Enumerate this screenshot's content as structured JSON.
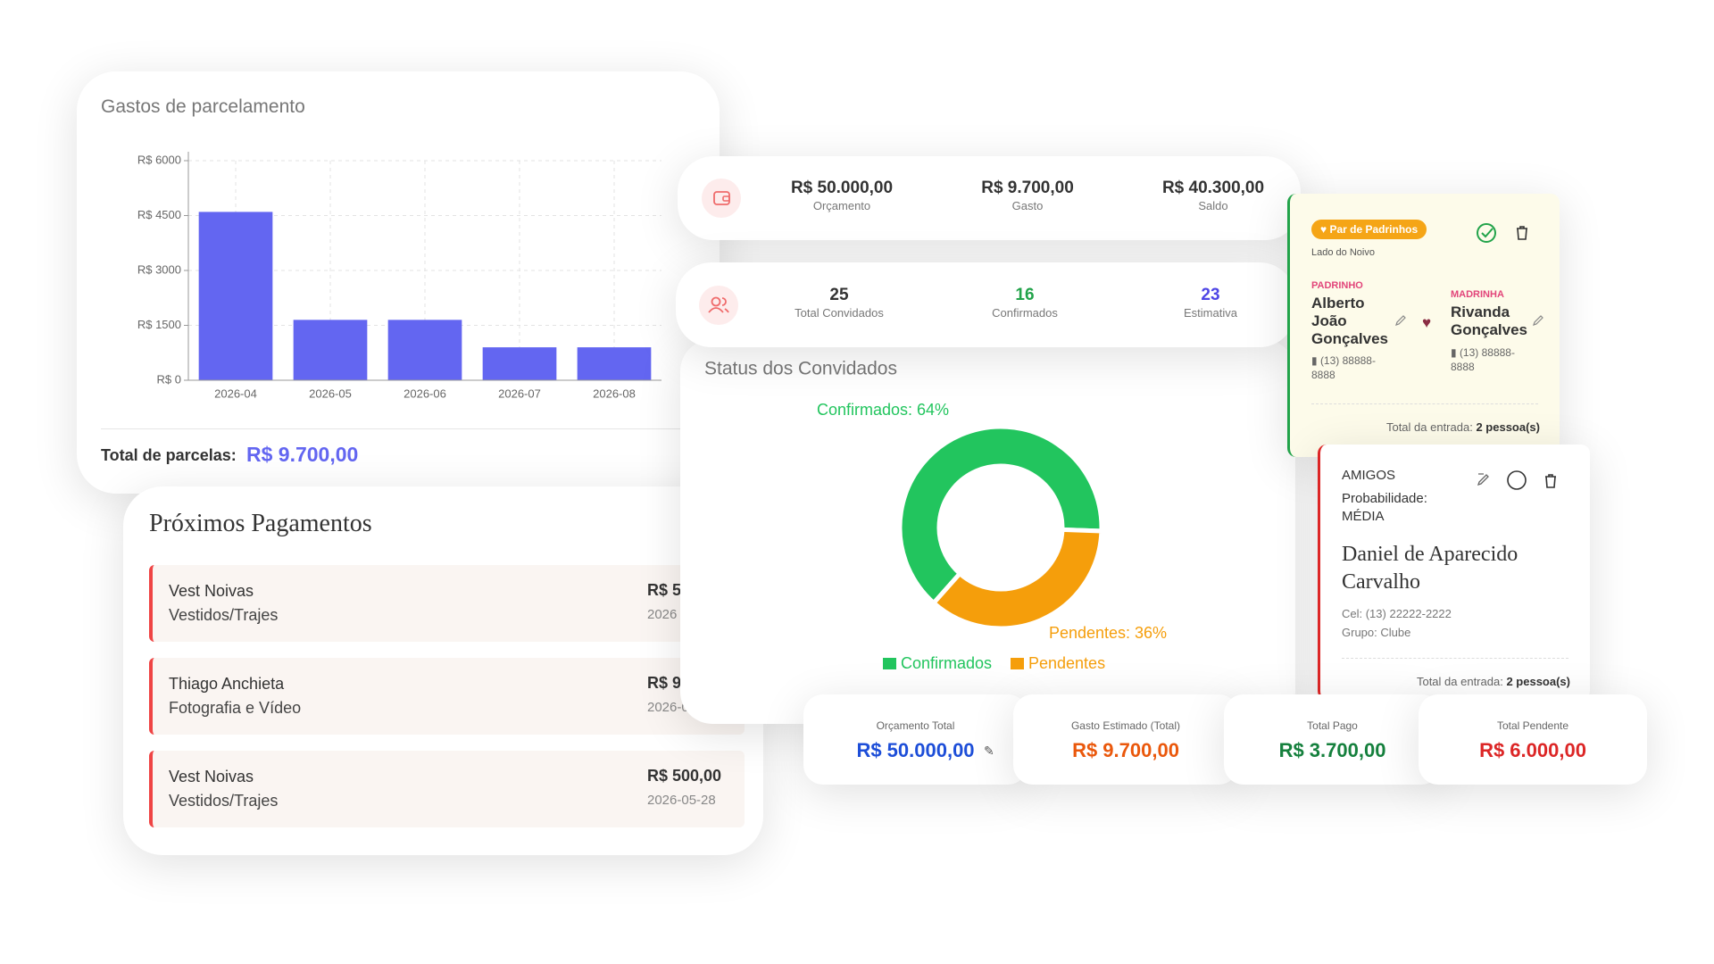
{
  "chart_data": [
    {
      "type": "bar",
      "title": "Gastos de parcelamento",
      "categories": [
        "2026-04",
        "2026-05",
        "2026-06",
        "2026-07",
        "2026-08"
      ],
      "values": [
        4600,
        1650,
        1650,
        900,
        900
      ],
      "color": "#6366f1",
      "ylim": [
        0,
        6000
      ],
      "yticks": [
        {
          "value": 0,
          "label": "R$ 0"
        },
        {
          "value": 1500,
          "label": "R$ 1500"
        },
        {
          "value": 3000,
          "label": "R$ 3000"
        },
        {
          "value": 4500,
          "label": "R$ 4500"
        },
        {
          "value": 6000,
          "label": "R$ 6000"
        }
      ],
      "grid": true,
      "total": {
        "label": "Total de parcelas:",
        "value": "R$ 9.700,00"
      }
    },
    {
      "type": "pie",
      "title": "Status dos Convidados",
      "categories": [
        "Confirmados",
        "Pendentes"
      ],
      "values": [
        64,
        36
      ],
      "value_labels": [
        "Confirmados: 64%",
        "Pendentes: 36%"
      ],
      "colors": [
        "#22c55e",
        "#f59e0b"
      ],
      "donut": true,
      "legend": "bottom"
    }
  ],
  "payments": {
    "title": "Próximos Pagamentos",
    "items": [
      {
        "vendor": "Vest Noivas",
        "category": "Vestidos/Trajes",
        "amount": "R$ 5",
        "date": "2026"
      },
      {
        "vendor": "Thiago Anchieta",
        "category": "Fotografia e Vídeo",
        "amount": "R$ 9",
        "date": "2026-0"
      },
      {
        "vendor": "Vest Noivas",
        "category": "Vestidos/Trajes",
        "amount": "R$ 500,00",
        "date": "2026-05-28"
      }
    ]
  },
  "budget": [
    {
      "value": "R$ 50.000,00",
      "label": "Orçamento"
    },
    {
      "value": "R$ 9.700,00",
      "label": "Gasto"
    },
    {
      "value": "R$ 40.300,00",
      "label": "Saldo"
    }
  ],
  "guests": [
    {
      "value": 25,
      "label": "Total Convidados"
    },
    {
      "value": 16,
      "label": "Confirmados"
    },
    {
      "value": 23,
      "label": "Estimativa"
    }
  ],
  "sponsors": {
    "badge": "Par de Padrinhos",
    "side": "Lado do Noivo",
    "padrinho": {
      "role": "PADRINHO",
      "name": "Alberto João Gonçalves",
      "phone": "(13) 88888-8888"
    },
    "madrinha": {
      "role": "MADRINHA",
      "name": "Rivanda Gonçalves",
      "phone": "(13) 88888-8888"
    },
    "total_label": "Total da entrada:",
    "total_value": "2 pessoa(s)"
  },
  "friend": {
    "group": "AMIGOS",
    "probability_label": "Probabilidade:",
    "probability": "MÉDIA",
    "name": "Daniel de Aparecido Carvalho",
    "phone": "Cel: (13) 22222-2222",
    "subgroup": "Grupo: Clube",
    "total_label": "Total da entrada:",
    "total_value": "2 pessoa(s)"
  },
  "stats": [
    {
      "label": "Orçamento Total",
      "value": "R$ 50.000,00"
    },
    {
      "label": "Gasto Estimado (Total)",
      "value": "R$ 9.700,00"
    },
    {
      "label": "Total Pago",
      "value": "R$ 3.700,00"
    },
    {
      "label": "Total Pendente",
      "value": "R$ 6.000,00"
    }
  ]
}
